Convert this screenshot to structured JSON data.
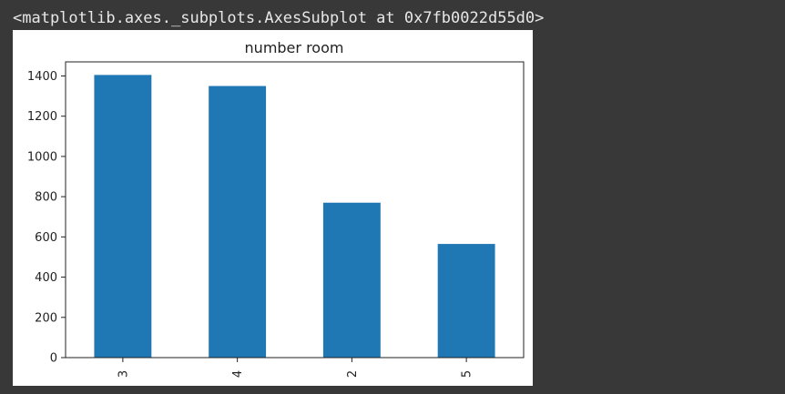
{
  "output_text": "<matplotlib.axes._subplots.AxesSubplot at 0x7fb0022d55d0>",
  "colors": {
    "background": "#383838",
    "output_text": "#e8e8e8",
    "figure_background": "#ffffff",
    "bar": "#1f77b4"
  },
  "chart_data": {
    "type": "bar",
    "title": "number room",
    "xlabel": "",
    "ylabel": "",
    "categories": [
      "3",
      "4",
      "2",
      "5"
    ],
    "values": [
      1405,
      1350,
      770,
      565
    ],
    "ylim": [
      0,
      1470
    ],
    "yticks": [
      0,
      200,
      400,
      600,
      800,
      1000,
      1200,
      1400
    ],
    "x_tick_rotation": "vertical",
    "grid": false,
    "legend": "none"
  }
}
